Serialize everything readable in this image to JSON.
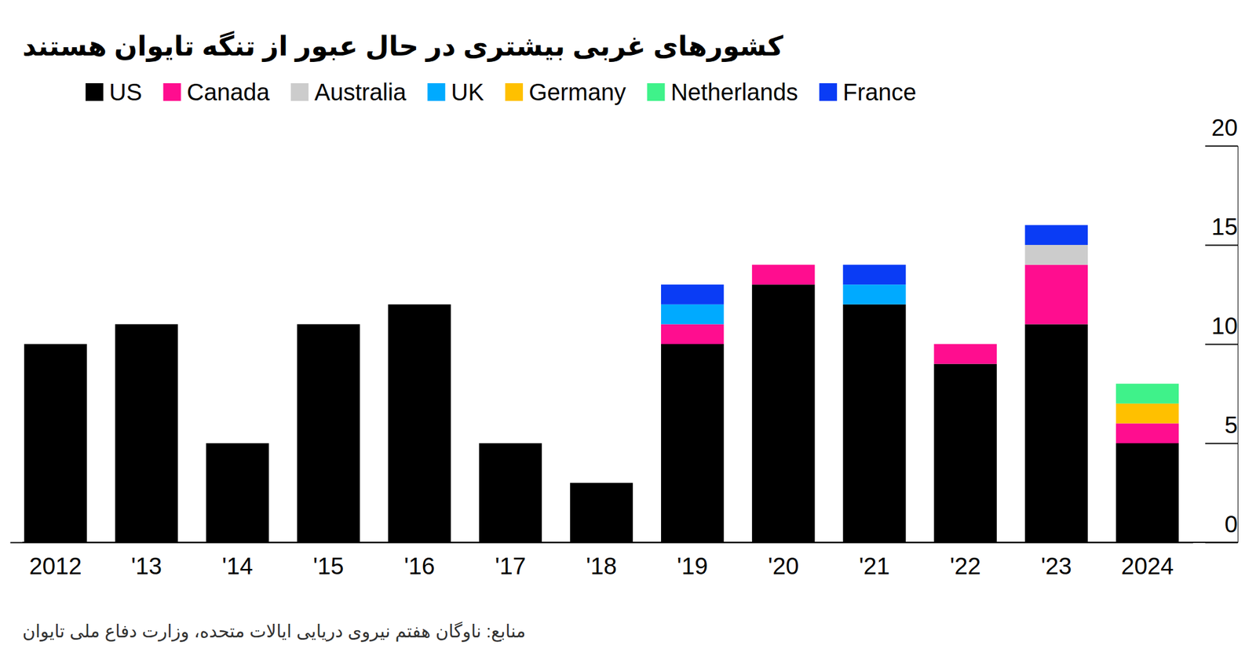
{
  "chart_data": {
    "type": "bar",
    "title": "کشورهای غربی بیشتری در حال عبور از تنگه تایوان هستند",
    "source": "منابع: ناوگان هفتم نیروی دریایی ایالات متحده، وزارت دفاع ملی تایوان",
    "categories": [
      "2012",
      "'13",
      "'14",
      "'15",
      "'16",
      "'17",
      "'18",
      "'19",
      "'20",
      "'21",
      "'22",
      "'23",
      "2024"
    ],
    "series": [
      {
        "name": "US",
        "color": "#000000",
        "values": [
          10,
          11,
          5,
          11,
          12,
          5,
          3,
          10,
          13,
          12,
          9,
          11,
          5
        ]
      },
      {
        "name": "Canada",
        "color": "#ff0d8f",
        "values": [
          0,
          0,
          0,
          0,
          0,
          0,
          0,
          1,
          1,
          0,
          1,
          3,
          1
        ]
      },
      {
        "name": "Australia",
        "color": "#cccccc",
        "values": [
          0,
          0,
          0,
          0,
          0,
          0,
          0,
          0,
          0,
          0,
          0,
          1,
          0
        ]
      },
      {
        "name": "UK",
        "color": "#00aaff",
        "values": [
          0,
          0,
          0,
          0,
          0,
          0,
          0,
          1,
          0,
          1,
          0,
          0,
          0
        ]
      },
      {
        "name": "Germany",
        "color": "#ffc000",
        "values": [
          0,
          0,
          0,
          0,
          0,
          0,
          0,
          0,
          0,
          0,
          0,
          0,
          1
        ]
      },
      {
        "name": "Netherlands",
        "color": "#3ff28a",
        "values": [
          0,
          0,
          0,
          0,
          0,
          0,
          0,
          0,
          0,
          0,
          0,
          0,
          1
        ]
      },
      {
        "name": "France",
        "color": "#0a3cf5",
        "values": [
          0,
          0,
          0,
          0,
          0,
          0,
          0,
          1,
          0,
          1,
          0,
          1,
          0
        ]
      }
    ],
    "ylim": [
      0,
      20
    ],
    "yticks": [
      0,
      5,
      10,
      15,
      20
    ],
    "stacked": true,
    "grid": false,
    "legend": "top"
  }
}
